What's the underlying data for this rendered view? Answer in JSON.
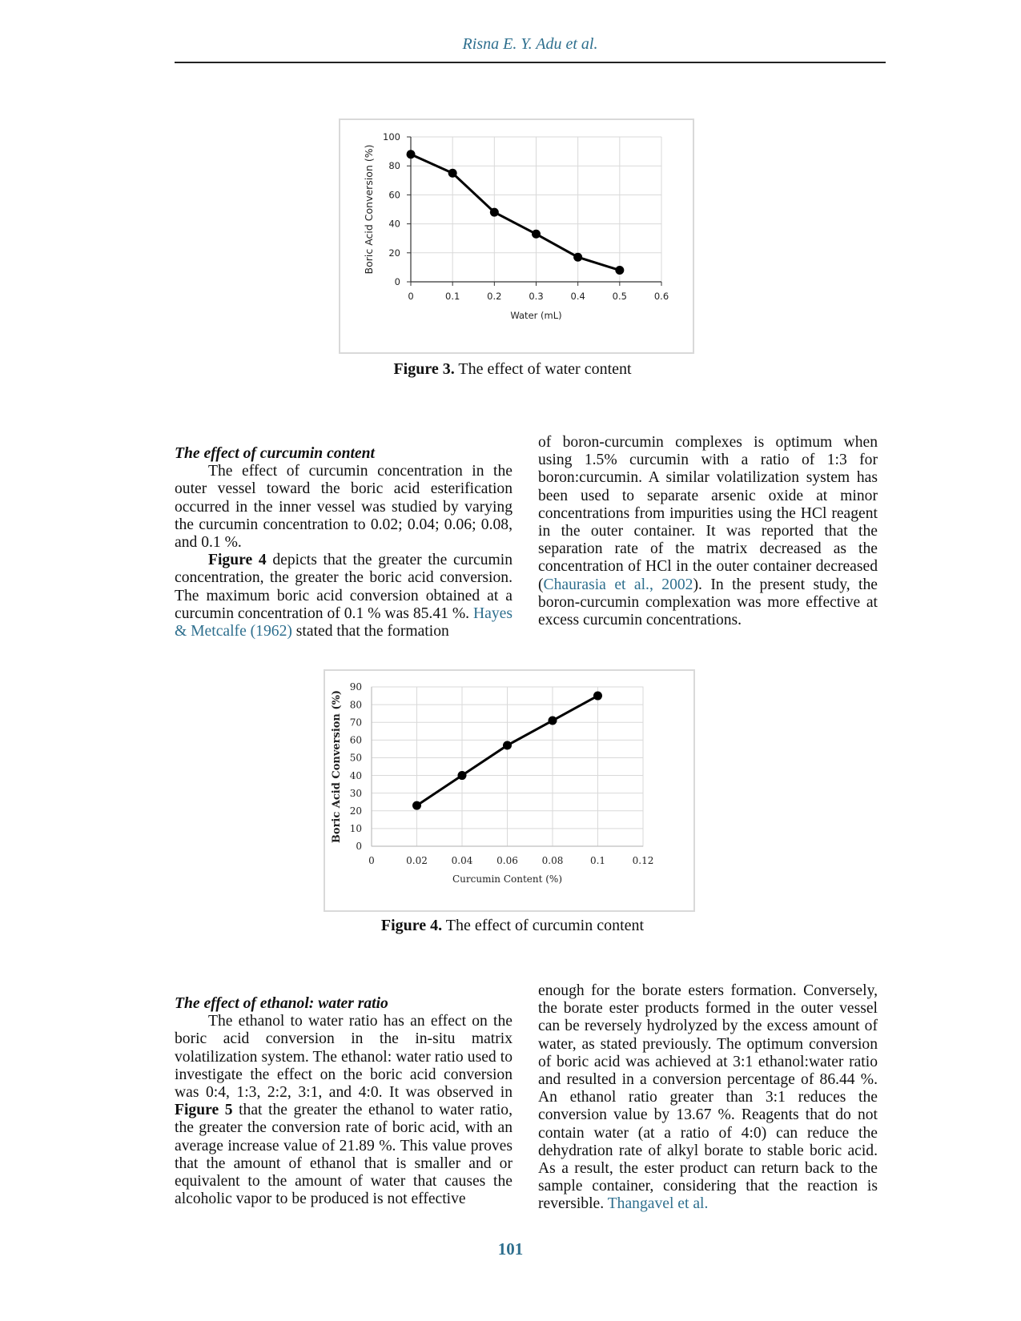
{
  "running_head": "Risna E. Y. Adu et al.",
  "figure3": {
    "caption_label": "Figure 3.",
    "caption_text": " The effect of water content",
    "chart_data": {
      "type": "line",
      "x": [
        0,
        0.1,
        0.2,
        0.3,
        0.4,
        0.5
      ],
      "series": [
        {
          "values": [
            88,
            75,
            48,
            33,
            17,
            8
          ]
        }
      ],
      "xlabel": "Water (mL)",
      "ylabel": "Boric Acid Conversion (%)",
      "xlim": [
        0,
        0.6
      ],
      "ylim": [
        0,
        100
      ],
      "xticks": [
        "0",
        "0.1",
        "0.2",
        "0.3",
        "0.4",
        "0.5",
        "0.6"
      ],
      "yticks": [
        "0",
        "20",
        "40",
        "60",
        "80",
        "100"
      ],
      "grid": true
    }
  },
  "section1": {
    "title": "The effect of curcumin content",
    "para1": "The effect of curcumin concentration in the outer vessel toward the boric acid esterification occurred in the inner vessel was studied by varying the curcumin concentration to 0.02; 0.04; 0.06; 0.08, and 0.1 %.",
    "para2_ref": "Figure 4",
    "para2_text": " depicts that the greater the curcumin concentration, the greater the boric acid conversion. The maximum boric acid conversion obtained at a curcumin concentration of 0.1 % was 85.41 %. ",
    "para2_link": "Hayes & Metcalfe (1962)",
    "para2_end": " stated that the formation",
    "right_text1": "of boron-curcumin complexes is optimum when using 1.5% curcumin with a ratio of 1:3 for boron:curcumin. A similar volatilization system has been used to separate arsenic oxide at minor concentrations from impurities using the HCl reagent in the outer container. It was reported that the separation rate of the matrix decreased as the concentration of HCl in the outer container decreased (",
    "right_link": "Chaurasia et al., 2002",
    "right_text2": "). In the present study, the boron-curcumin complexation was more effective at excess curcumin concentrations."
  },
  "figure4": {
    "caption_label": "Figure 4.",
    "caption_text": " The effect of curcumin content",
    "chart_data": {
      "type": "line",
      "x": [
        0.02,
        0.04,
        0.06,
        0.08,
        0.1
      ],
      "series": [
        {
          "values": [
            23,
            40,
            57,
            71,
            85
          ]
        }
      ],
      "xlabel": "Curcumin Content (%)",
      "ylabel": "Boric Acid Conversion (%)",
      "xlim": [
        0,
        0.12
      ],
      "ylim": [
        0,
        90
      ],
      "xticks": [
        "0",
        "0.02",
        "0.04",
        "0.06",
        "0.08",
        "0.1",
        "0.12"
      ],
      "yticks": [
        "0",
        "10",
        "20",
        "30",
        "40",
        "50",
        "60",
        "70",
        "80",
        "90"
      ],
      "grid": true
    }
  },
  "section2": {
    "title": "The effect of ethanol: water ratio",
    "para1a": "The ethanol to water ratio has an effect on the boric acid conversion in the in-situ matrix volatilization system. The ethanol: water ratio used to investigate the effect on the boric acid conversion was 0:4, 1:3, 2:2, 3:1, and 4:0. It was observed in ",
    "para1_ref": "Figure 5",
    "para1b": " that the greater the ethanol to water ratio, the greater the conversion rate of boric acid, with an average increase value of 21.89 %. This value proves that the amount of ethanol that is smaller and or equivalent to the amount of water that causes the alcoholic vapor to be produced is not effective",
    "right_text": "enough for the borate esters formation. Conversely, the borate ester products formed in the outer vessel can be reversely hydrolyzed by the excess amount of water, as stated previously. The optimum conversion of boric acid was achieved at 3:1 ethanol:water ratio and resulted in a conversion percentage of 86.44 %. An ethanol ratio greater than 3:1 reduces the conversion value by 13.67 %. Reagents that do not contain water (at a ratio of 4:0) can reduce the dehydration rate of alkyl borate to stable boric acid. As a result, the ester product can return back to the sample container, considering that the reaction is reversible. ",
    "right_link": "Thangavel et al."
  },
  "page_number": "101"
}
